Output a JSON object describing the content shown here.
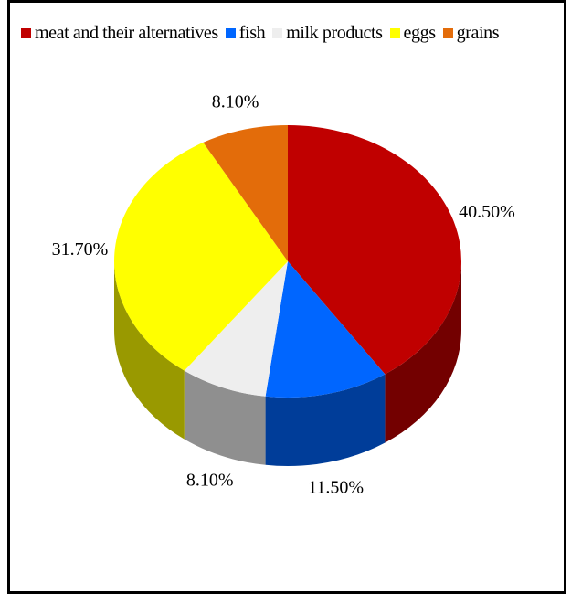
{
  "chart_data": {
    "type": "pie",
    "categories": [
      "meat and their alternatives",
      "fish",
      "milk products",
      "eggs",
      "grains"
    ],
    "values": [
      40.5,
      11.5,
      8.1,
      31.7,
      8.1
    ],
    "value_labels": [
      "40.50%",
      "11.50%",
      "8.10%",
      "31.70%",
      "8.10%"
    ],
    "colors": [
      "#c00000",
      "#0066ff",
      "#eeeeee",
      "#ffff00",
      "#e36c0a"
    ]
  }
}
